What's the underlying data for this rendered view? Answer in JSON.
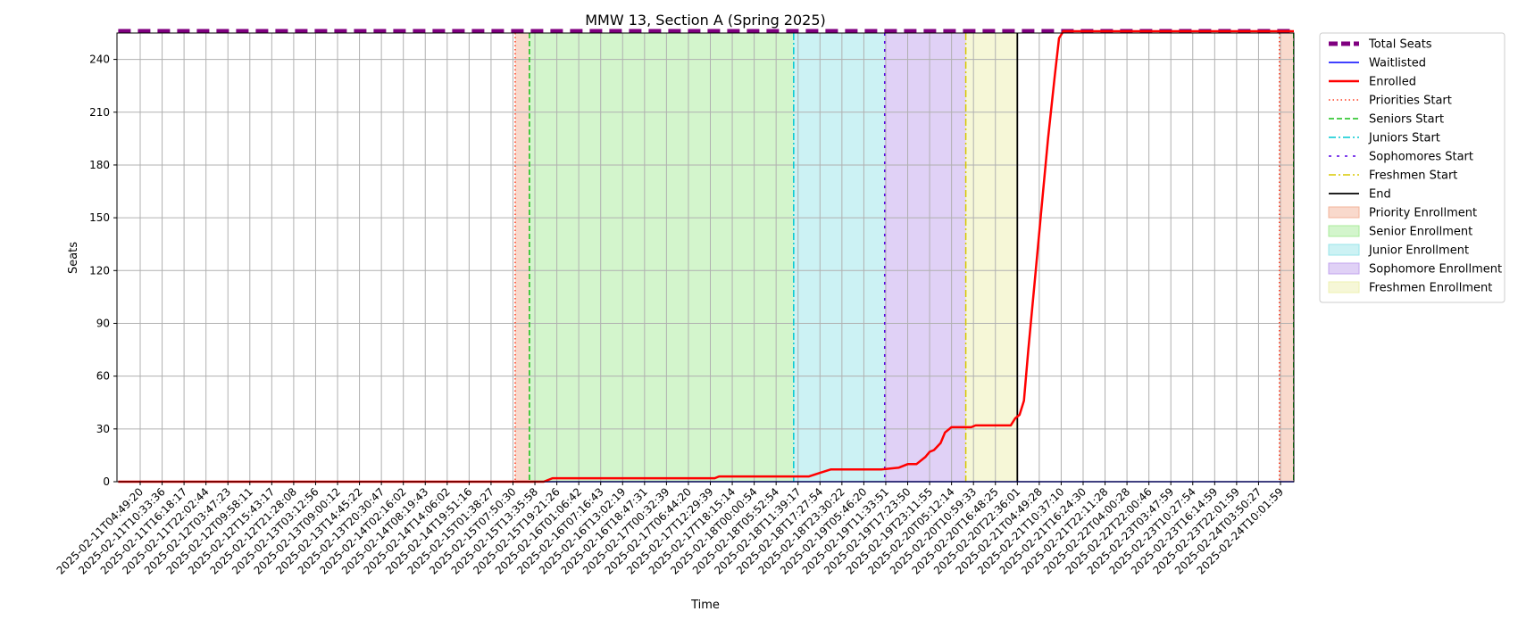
{
  "chart_data": {
    "type": "line",
    "title": "MMW 13, Section A (Spring 2025)",
    "xlabel": "Time",
    "ylabel": "Seats",
    "ylim": [
      0,
      255
    ],
    "yticks": [
      0,
      30,
      60,
      90,
      120,
      150,
      180,
      210,
      240
    ],
    "grid": true,
    "legend_position": "outside-right",
    "x_tick_labels": [
      "2025-02-11T04:49:20",
      "2025-02-11T10:33:36",
      "2025-02-11T16:18:17",
      "2025-02-11T22:02:44",
      "2025-02-12T03:47:23",
      "2025-02-12T09:58:11",
      "2025-02-12T15:43:17",
      "2025-02-12T21:28:08",
      "2025-02-13T03:12:56",
      "2025-02-13T09:00:12",
      "2025-02-13T14:45:22",
      "2025-02-13T20:30:47",
      "2025-02-14T02:16:02",
      "2025-02-14T08:19:43",
      "2025-02-14T14:06:02",
      "2025-02-14T19:51:16",
      "2025-02-15T01:38:27",
      "2025-02-15T07:50:30",
      "2025-02-15T13:35:58",
      "2025-02-15T19:21:26",
      "2025-02-16T01:06:42",
      "2025-02-16T07:16:43",
      "2025-02-16T13:02:19",
      "2025-02-16T18:47:31",
      "2025-02-17T00:32:39",
      "2025-02-17T06:44:20",
      "2025-02-17T12:29:39",
      "2025-02-17T18:15:14",
      "2025-02-18T00:00:54",
      "2025-02-18T05:52:54",
      "2025-02-18T11:39:17",
      "2025-02-18T17:27:54",
      "2025-02-18T23:30:22",
      "2025-02-19T05:46:20",
      "2025-02-19T11:33:51",
      "2025-02-19T17:23:50",
      "2025-02-19T23:11:55",
      "2025-02-20T05:12:14",
      "2025-02-20T10:59:33",
      "2025-02-20T16:48:25",
      "2025-02-20T22:36:01",
      "2025-02-21T04:49:28",
      "2025-02-21T10:37:10",
      "2025-02-21T16:24:30",
      "2025-02-21T22:11:28",
      "2025-02-22T04:00:28",
      "2025-02-22T22:00:46",
      "2025-02-23T03:47:59",
      "2025-02-23T10:27:54",
      "2025-02-23T16:14:59",
      "2025-02-23T22:01:59",
      "2025-02-24T03:50:27",
      "2025-02-24T10:01:59"
    ],
    "x_tick_span": [
      0,
      52
    ],
    "x_plot_span": [
      -1,
      52.8
    ],
    "series": [
      {
        "name": "Total Seats",
        "color": "#800080",
        "points": [
          [
            -1,
            256
          ],
          [
            52.8,
            256
          ]
        ]
      },
      {
        "name": "Waitlisted",
        "color": "#0000ff",
        "points": [
          [
            -1,
            0
          ],
          [
            52.8,
            0
          ]
        ]
      },
      {
        "name": "Enrolled",
        "color": "#ff0000",
        "points": [
          [
            -1,
            0
          ],
          [
            17.1,
            0
          ],
          [
            17.6,
            0
          ],
          [
            18.4,
            0
          ],
          [
            18.8,
            2
          ],
          [
            26.2,
            2
          ],
          [
            26.4,
            3
          ],
          [
            30.0,
            3
          ],
          [
            30.5,
            3
          ],
          [
            31.0,
            5
          ],
          [
            31.5,
            7
          ],
          [
            33.8,
            7
          ],
          [
            34.6,
            8
          ],
          [
            35.0,
            10
          ],
          [
            35.4,
            10
          ],
          [
            35.8,
            14
          ],
          [
            36.0,
            17
          ],
          [
            36.2,
            18
          ],
          [
            36.5,
            22
          ],
          [
            36.7,
            28
          ],
          [
            37.0,
            31
          ],
          [
            37.5,
            31
          ],
          [
            37.9,
            31
          ],
          [
            38.1,
            32
          ],
          [
            39.4,
            32
          ],
          [
            39.7,
            32
          ],
          [
            39.9,
            36
          ],
          [
            40.1,
            38
          ],
          [
            40.3,
            46
          ],
          [
            40.5,
            75
          ],
          [
            40.8,
            115
          ],
          [
            41.1,
            155
          ],
          [
            41.4,
            195
          ],
          [
            41.7,
            230
          ],
          [
            41.9,
            252
          ],
          [
            42.1,
            256
          ],
          [
            52.8,
            256
          ]
        ]
      }
    ],
    "markers": [
      {
        "name": "Priorities Start",
        "x": 17.1,
        "color": "#ff3b1f",
        "style": "dotted"
      },
      {
        "name": "Seniors Start",
        "x": 17.75,
        "color": "#17bf17",
        "style": "dashed"
      },
      {
        "name": "Juniors Start",
        "x": 29.8,
        "color": "#00c8d2",
        "style": "dashdot"
      },
      {
        "name": "Sophomores Start",
        "x": 33.95,
        "color": "#5500e6",
        "style": "loosedash"
      },
      {
        "name": "Freshmen Start",
        "x": 37.65,
        "color": "#d8c800",
        "style": "dashdot"
      },
      {
        "name": "End",
        "x": 40.0,
        "color": "#000000",
        "style": "solid"
      },
      {
        "name": "Priorities Start",
        "x": 51.95,
        "color": "#ff3b1f",
        "style": "dotted"
      },
      {
        "name": "Seniors Start",
        "x": 52.6,
        "color": "#17bf17",
        "style": "dashed"
      }
    ],
    "regions": [
      {
        "name": "Priority Enrollment",
        "from": 17.1,
        "to": 17.75,
        "color": "#f3b49a"
      },
      {
        "name": "Senior Enrollment",
        "from": 17.75,
        "to": 29.8,
        "color": "#a8eb9a"
      },
      {
        "name": "Junior Enrollment",
        "from": 29.8,
        "to": 33.95,
        "color": "#9ae5ea"
      },
      {
        "name": "Sophomore Enrollment",
        "from": 33.95,
        "to": 37.65,
        "color": "#c2a4ee"
      },
      {
        "name": "Freshmen Enrollment",
        "from": 37.65,
        "to": 40.0,
        "color": "#eef0b0"
      },
      {
        "name": "Priority Enrollment",
        "from": 51.95,
        "to": 52.6,
        "color": "#f3b49a"
      }
    ],
    "legend": [
      {
        "label": "Total Seats",
        "kind": "line",
        "color": "#800080",
        "style": "thickdash"
      },
      {
        "label": "Waitlisted",
        "kind": "line",
        "color": "#0000ff",
        "style": "solid"
      },
      {
        "label": "Enrolled",
        "kind": "line",
        "color": "#ff0000",
        "style": "solidthick"
      },
      {
        "label": "Priorities Start",
        "kind": "line",
        "color": "#ff3b1f",
        "style": "dotted"
      },
      {
        "label": "Seniors Start",
        "kind": "line",
        "color": "#17bf17",
        "style": "dashed"
      },
      {
        "label": "Juniors Start",
        "kind": "line",
        "color": "#00c8d2",
        "style": "dashdot"
      },
      {
        "label": "Sophomores Start",
        "kind": "line",
        "color": "#5500e6",
        "style": "loosedash"
      },
      {
        "label": "Freshmen Start",
        "kind": "line",
        "color": "#d8c800",
        "style": "dashdot"
      },
      {
        "label": "End",
        "kind": "line",
        "color": "#000000",
        "style": "solid"
      },
      {
        "label": "Priority Enrollment",
        "kind": "patch",
        "color": "#f3b49a"
      },
      {
        "label": "Senior Enrollment",
        "kind": "patch",
        "color": "#a8eb9a"
      },
      {
        "label": "Junior Enrollment",
        "kind": "patch",
        "color": "#9ae5ea"
      },
      {
        "label": "Sophomore Enrollment",
        "kind": "patch",
        "color": "#c2a4ee"
      },
      {
        "label": "Freshmen Enrollment",
        "kind": "patch",
        "color": "#eef0b0"
      }
    ]
  }
}
